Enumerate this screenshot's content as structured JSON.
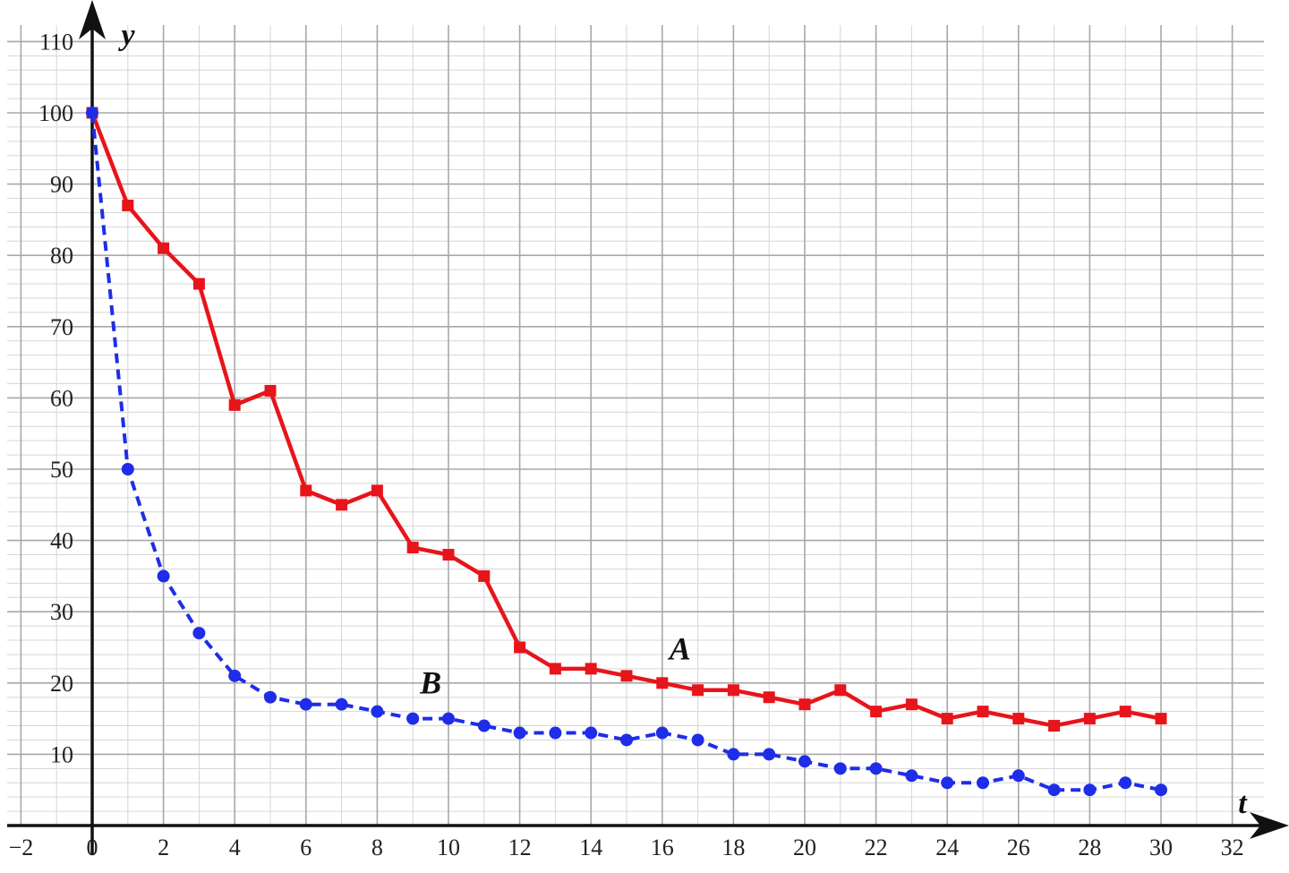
{
  "chart_data": {
    "type": "line",
    "title": "",
    "xlabel": "t",
    "ylabel": "y",
    "xlim": [
      -2.3,
      33.5
    ],
    "ylim": [
      0,
      111.5
    ],
    "x_ticks": [
      -2,
      0,
      2,
      4,
      6,
      8,
      10,
      12,
      14,
      16,
      18,
      20,
      22,
      24,
      26,
      28,
      30,
      32
    ],
    "x_tick_labels": [
      "−2",
      "0",
      "2",
      "4",
      "6",
      "8",
      "10",
      "12",
      "14",
      "16",
      "18",
      "20",
      "22",
      "24",
      "26",
      "28",
      "30",
      "32"
    ],
    "y_ticks": [
      10,
      20,
      30,
      40,
      50,
      60,
      70,
      80,
      90,
      100,
      110
    ],
    "y_tick_labels": [
      "10",
      "20",
      "30",
      "40",
      "50",
      "60",
      "70",
      "80",
      "90",
      "100",
      "110"
    ],
    "grid": true,
    "minor_grid_step_x": 1,
    "minor_grid_step_y": 2,
    "x": [
      0,
      1,
      2,
      3,
      4,
      5,
      6,
      7,
      8,
      9,
      10,
      11,
      12,
      13,
      14,
      15,
      16,
      17,
      18,
      19,
      20,
      21,
      22,
      23,
      24,
      25,
      26,
      27,
      28,
      29,
      30
    ],
    "series": [
      {
        "name": "A",
        "color": "#e8141b",
        "style": "solid",
        "marker": "square",
        "label_position": [
          16.5,
          23.3
        ],
        "values": [
          100,
          87,
          81,
          76,
          59,
          61,
          47,
          45,
          47,
          39,
          38,
          35,
          25,
          22,
          22,
          21,
          20,
          19,
          19,
          18,
          17,
          19,
          16,
          17,
          15,
          16,
          15,
          14,
          15,
          16,
          15
        ]
      },
      {
        "name": "B",
        "color": "#1f2de8",
        "style": "dashed",
        "marker": "circle",
        "label_position": [
          9.5,
          18.5
        ],
        "values": [
          100,
          50,
          35,
          27,
          21,
          18,
          17,
          17,
          16,
          15,
          15,
          14,
          13,
          13,
          13,
          12,
          13,
          12,
          10,
          10,
          9,
          8,
          8,
          7,
          6,
          6,
          7,
          5,
          5,
          6,
          5
        ]
      }
    ]
  }
}
